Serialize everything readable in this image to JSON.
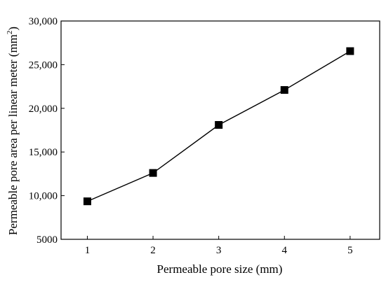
{
  "chart_data": {
    "type": "line",
    "xlabel": "Permeable pore size (mm)",
    "ylabel_main": "Permeable pore area per linear meter (mm",
    "ylabel_sup": "2",
    "ylabel_close": ")",
    "x": [
      1,
      2,
      3,
      4,
      5
    ],
    "y": [
      9350,
      12600,
      18100,
      22100,
      26550
    ],
    "xlim": [
      0.6,
      5.45
    ],
    "ylim": [
      5000,
      30000
    ],
    "xticks": [
      1,
      2,
      3,
      4,
      5
    ],
    "yticks": [
      5000,
      10000,
      15000,
      20000,
      25000,
      30000
    ],
    "ytick_labels": [
      "5000",
      "10,000",
      "15,000",
      "20,000",
      "25,000",
      "30,000"
    ],
    "marker": "square",
    "color": "#000000",
    "grid": false
  }
}
